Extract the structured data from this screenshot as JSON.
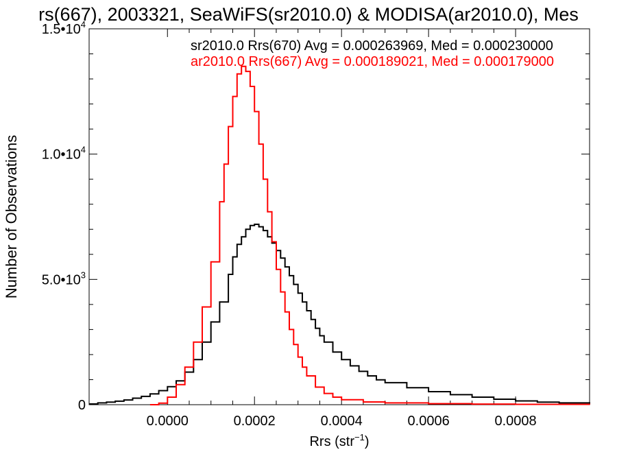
{
  "chart_data": {
    "type": "line",
    "title": "rs(667), 2003321, SeaWiFS(sr2010.0) & MODISA(ar2010.0), Mes",
    "xlabel_main": "Rrs (str",
    "xlabel_sup": "−1",
    "xlabel_close": ")",
    "ylabel": "Number of Observations",
    "xlim": [
      -0.00018,
      0.00097
    ],
    "ylim": [
      0,
      15000
    ],
    "x_ticks": [
      {
        "value": 0.0,
        "label": "0.0000"
      },
      {
        "value": 0.0002,
        "label": "0.0002"
      },
      {
        "value": 0.0004,
        "label": "0.0004"
      },
      {
        "value": 0.0006,
        "label": "0.0006"
      },
      {
        "value": 0.0008,
        "label": "0.0008"
      }
    ],
    "y_ticks": [
      {
        "value": 0,
        "mant": "0",
        "exp": ""
      },
      {
        "value": 5000,
        "mant": "5.0•10",
        "exp": "3"
      },
      {
        "value": 10000,
        "mant": "1.0•10",
        "exp": "4"
      },
      {
        "value": 15000,
        "mant": "1.5•10",
        "exp": "4"
      }
    ],
    "series": [
      {
        "name": "sr2010.0 Rrs(670) Avg = 0.000263969, Med = 0.000230000",
        "color": "#000000",
        "points": [
          [
            -0.00018,
            30
          ],
          [
            -0.00016,
            70
          ],
          [
            -0.00014,
            100
          ],
          [
            -0.00012,
            140
          ],
          [
            -0.0001,
            190
          ],
          [
            -8e-05,
            260
          ],
          [
            -6e-05,
            330
          ],
          [
            -4e-05,
            430
          ],
          [
            -2e-05,
            560
          ],
          [
            0.0,
            720
          ],
          [
            2e-05,
            950
          ],
          [
            4e-05,
            1300
          ],
          [
            6e-05,
            1800
          ],
          [
            8e-05,
            2500
          ],
          [
            0.0001,
            3300
          ],
          [
            0.00012,
            4100
          ],
          [
            0.00014,
            5200
          ],
          [
            0.00015,
            5900
          ],
          [
            0.00016,
            6400
          ],
          [
            0.00017,
            6700
          ],
          [
            0.00018,
            7000
          ],
          [
            0.00019,
            7150
          ],
          [
            0.0002,
            7200
          ],
          [
            0.00021,
            7100
          ],
          [
            0.00022,
            6950
          ],
          [
            0.00023,
            6700
          ],
          [
            0.00024,
            6450
          ],
          [
            0.00025,
            6150
          ],
          [
            0.00026,
            5850
          ],
          [
            0.00027,
            5500
          ],
          [
            0.00028,
            5150
          ],
          [
            0.00029,
            4800
          ],
          [
            0.0003,
            4450
          ],
          [
            0.00031,
            4100
          ],
          [
            0.00032,
            3750
          ],
          [
            0.00033,
            3400
          ],
          [
            0.00034,
            3050
          ],
          [
            0.00035,
            2750
          ],
          [
            0.00036,
            2500
          ],
          [
            0.00038,
            2100
          ],
          [
            0.0004,
            1800
          ],
          [
            0.00042,
            1550
          ],
          [
            0.00044,
            1330
          ],
          [
            0.00046,
            1150
          ],
          [
            0.00048,
            990
          ],
          [
            0.0005,
            880
          ],
          [
            0.00055,
            680
          ],
          [
            0.0006,
            520
          ],
          [
            0.00065,
            400
          ],
          [
            0.0007,
            300
          ],
          [
            0.00075,
            220
          ],
          [
            0.0008,
            150
          ],
          [
            0.00085,
            100
          ],
          [
            0.0009,
            70
          ],
          [
            0.00097,
            40
          ]
        ]
      },
      {
        "name": "ar2010.0 Rrs(667) Avg = 0.000189021, Med = 0.000179000",
        "color": "#ff0000",
        "points": [
          [
            -4e-05,
            0
          ],
          [
            -2e-05,
            60
          ],
          [
            0.0,
            300
          ],
          [
            2e-05,
            800
          ],
          [
            4e-05,
            1500
          ],
          [
            6e-05,
            2500
          ],
          [
            8e-05,
            3900
          ],
          [
            0.0001,
            5700
          ],
          [
            0.00012,
            8100
          ],
          [
            0.00013,
            9600
          ],
          [
            0.00014,
            11100
          ],
          [
            0.00015,
            12300
          ],
          [
            0.00016,
            13200
          ],
          [
            0.00017,
            13500
          ],
          [
            0.00018,
            13300
          ],
          [
            0.00019,
            12700
          ],
          [
            0.0002,
            11700
          ],
          [
            0.00021,
            10400
          ],
          [
            0.00022,
            9000
          ],
          [
            0.00023,
            7700
          ],
          [
            0.00024,
            6500
          ],
          [
            0.00025,
            5400
          ],
          [
            0.00026,
            4500
          ],
          [
            0.00027,
            3700
          ],
          [
            0.00028,
            3000
          ],
          [
            0.00029,
            2400
          ],
          [
            0.0003,
            1900
          ],
          [
            0.00031,
            1500
          ],
          [
            0.00032,
            1150
          ],
          [
            0.00034,
            700
          ],
          [
            0.00036,
            450
          ],
          [
            0.00038,
            300
          ],
          [
            0.0004,
            200
          ],
          [
            0.00045,
            110
          ],
          [
            0.0005,
            70
          ],
          [
            0.0006,
            40
          ],
          [
            0.0007,
            25
          ],
          [
            0.0008,
            15
          ],
          [
            0.00097,
            5
          ]
        ]
      }
    ],
    "grid": false,
    "legend_position": "top-right"
  }
}
